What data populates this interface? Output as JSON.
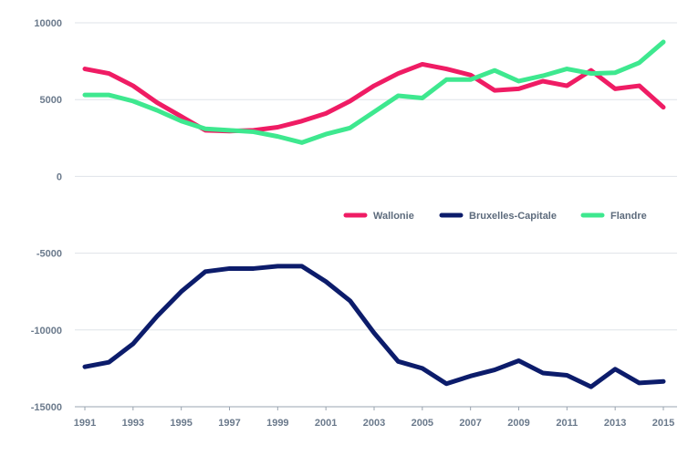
{
  "chart_data": {
    "type": "line",
    "title": "",
    "xlabel": "",
    "ylabel": "",
    "x": [
      1991,
      1992,
      1993,
      1994,
      1995,
      1996,
      1997,
      1998,
      1999,
      2000,
      2001,
      2002,
      2003,
      2004,
      2005,
      2006,
      2007,
      2008,
      2009,
      2010,
      2011,
      2012,
      2013,
      2014,
      2015
    ],
    "x_tick_labels": [
      "1991",
      "1993",
      "1995",
      "1997",
      "1999",
      "2001",
      "2003",
      "2005",
      "2007",
      "2009",
      "2011",
      "2013",
      "2015"
    ],
    "y_ticks": [
      10000,
      5000,
      0,
      -5000,
      -10000,
      -15000
    ],
    "ylim": [
      -15000,
      10000
    ],
    "xlim": [
      1991,
      2015
    ],
    "grid": "horizontal",
    "legend_position": "center-right",
    "series": [
      {
        "name": "Wallonie",
        "color": "#ef1c64",
        "values": [
          7000,
          6700,
          5900,
          4800,
          3900,
          3000,
          2950,
          3000,
          3200,
          3600,
          4100,
          4900,
          5900,
          6700,
          7300,
          7000,
          6600,
          5600,
          5700,
          6200,
          5900,
          6900,
          5700,
          5900,
          4500
        ]
      },
      {
        "name": "Bruxelles-Capitale",
        "color": "#0c1c6b",
        "values": [
          -12400,
          -12100,
          -10900,
          -9100,
          -7500,
          -6200,
          -6000,
          -6000,
          -5850,
          -5850,
          -6850,
          -8100,
          -10200,
          -12050,
          -12500,
          -13500,
          -13000,
          -12600,
          -12000,
          -12800,
          -12950,
          -13700,
          -12550,
          -13450,
          -13350
        ]
      },
      {
        "name": "Flandre",
        "color": "#3ee88f",
        "values": [
          5300,
          5300,
          4900,
          4300,
          3600,
          3100,
          3000,
          2900,
          2600,
          2200,
          2750,
          3150,
          4200,
          5250,
          5100,
          6300,
          6300,
          6900,
          6200,
          6550,
          7000,
          6700,
          6750,
          7400,
          8750
        ]
      }
    ]
  }
}
